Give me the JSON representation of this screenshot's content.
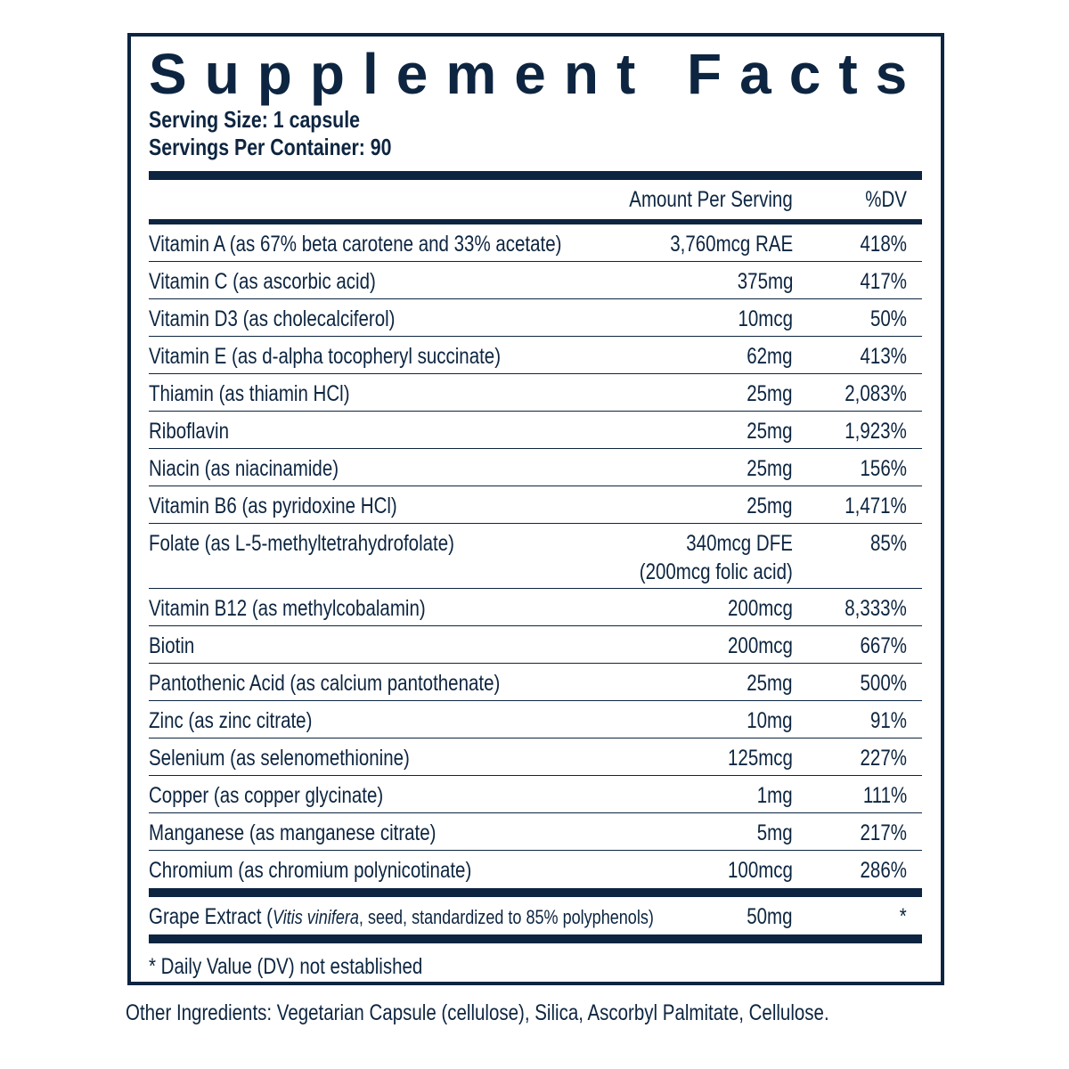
{
  "header": {
    "title": "Supplement Facts",
    "serving_size": "Serving Size: 1 capsule",
    "servings_per_container": "Servings Per Container: 90"
  },
  "columns": {
    "amount": "Amount Per Serving",
    "dv": "%DV"
  },
  "rows": [
    {
      "name": "Vitamin A (as 67% beta carotene and 33% acetate)",
      "amount": "3,760mcg RAE",
      "dv": "418%"
    },
    {
      "name": "Vitamin C (as ascorbic acid)",
      "amount": "375mg",
      "dv": "417%"
    },
    {
      "name": "Vitamin D3 (as cholecalciferol)",
      "amount": "10mcg",
      "dv": "50%"
    },
    {
      "name": "Vitamin E (as d-alpha tocopheryl succinate)",
      "amount": "62mg",
      "dv": "413%"
    },
    {
      "name": "Thiamin (as thiamin HCl)",
      "amount": "25mg",
      "dv": "2,083%"
    },
    {
      "name": "Riboflavin",
      "amount": "25mg",
      "dv": "1,923%"
    },
    {
      "name": "Niacin (as niacinamide)",
      "amount": "25mg",
      "dv": "156%"
    },
    {
      "name": "Vitamin B6 (as pyridoxine HCl)",
      "amount": "25mg",
      "dv": "1,471%"
    },
    {
      "name": "Folate (as L-5-methyltetrahydrofolate)",
      "amount": "340mcg DFE",
      "amount_note": "(200mcg folic acid)",
      "dv": "85%"
    },
    {
      "name": "Vitamin B12 (as methylcobalamin)",
      "amount": "200mcg",
      "dv": "8,333%"
    },
    {
      "name": "Biotin",
      "amount": "200mcg",
      "dv": "667%"
    },
    {
      "name": "Pantothenic Acid (as calcium pantothenate)",
      "amount": "25mg",
      "dv": "500%"
    },
    {
      "name": "Zinc (as zinc citrate)",
      "amount": "10mg",
      "dv": "91%"
    },
    {
      "name": "Selenium (as selenomethionine)",
      "amount": "125mcg",
      "dv": "227%"
    },
    {
      "name": "Copper (as copper glycinate)",
      "amount": "1mg",
      "dv": "111%"
    },
    {
      "name": "Manganese (as manganese citrate)",
      "amount": "5mg",
      "dv": "217%"
    },
    {
      "name": "Chromium (as chromium polynicotinate)",
      "amount": "100mcg",
      "dv": "286%"
    }
  ],
  "extract": {
    "name_prefix": "Grape Extract (",
    "name_italic": "Vitis vinifera",
    "name_suffix": ", seed, standardized to 85% polyphenols)",
    "amount": "50mg",
    "dv": "*"
  },
  "footnote": "* Daily Value (DV) not established",
  "other_ingredients": "Other Ingredients: Vegetarian Capsule (cellulose), Silica, Ascorbyl Palmitate, Cellulose."
}
